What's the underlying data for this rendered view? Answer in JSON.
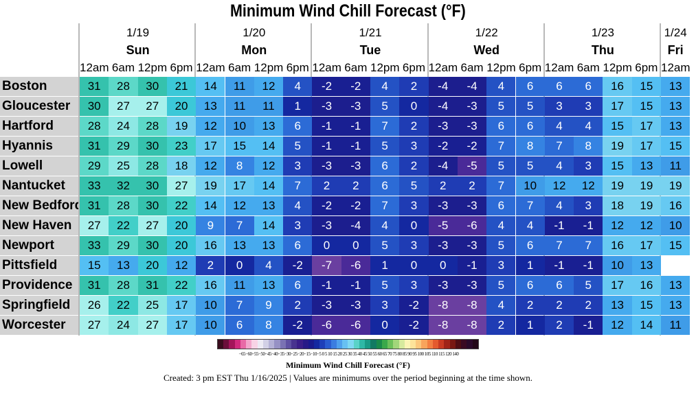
{
  "title": "Minimum Wind Chill Forecast (°F)",
  "chart_data": {
    "type": "heatmap",
    "days": [
      {
        "date": "1/19",
        "dow": "Sun",
        "hours": [
          "12am",
          "6am",
          "12pm",
          "6pm"
        ]
      },
      {
        "date": "1/20",
        "dow": "Mon",
        "hours": [
          "12am",
          "6am",
          "12pm",
          "6pm"
        ]
      },
      {
        "date": "1/21",
        "dow": "Tue",
        "hours": [
          "12am",
          "6am",
          "12pm",
          "6pm"
        ]
      },
      {
        "date": "1/22",
        "dow": "Wed",
        "hours": [
          "12am",
          "6am",
          "12pm",
          "6pm"
        ]
      },
      {
        "date": "1/23",
        "dow": "Thu",
        "hours": [
          "12am",
          "6am",
          "12pm",
          "6pm"
        ]
      },
      {
        "date": "1/24",
        "dow": "Fri",
        "hours": [
          "12am"
        ]
      }
    ],
    "rows": [
      {
        "city": "Boston",
        "values": [
          31,
          28,
          30,
          21,
          14,
          11,
          12,
          4,
          -2,
          -2,
          4,
          2,
          -4,
          -4,
          4,
          6,
          6,
          6,
          16,
          15,
          13
        ]
      },
      {
        "city": "Gloucester",
        "values": [
          30,
          27,
          27,
          20,
          13,
          11,
          11,
          1,
          -3,
          -3,
          5,
          0,
          -4,
          -3,
          5,
          5,
          3,
          3,
          17,
          15,
          13
        ]
      },
      {
        "city": "Hartford",
        "values": [
          28,
          24,
          28,
          19,
          12,
          10,
          13,
          6,
          -1,
          -1,
          7,
          2,
          -3,
          -3,
          6,
          6,
          4,
          4,
          15,
          17,
          13
        ]
      },
      {
        "city": "Hyannis",
        "values": [
          31,
          29,
          30,
          23,
          17,
          15,
          14,
          5,
          -1,
          -1,
          5,
          3,
          -2,
          -2,
          7,
          8,
          7,
          8,
          19,
          17,
          15
        ]
      },
      {
        "city": "Lowell",
        "values": [
          29,
          25,
          28,
          18,
          12,
          8,
          12,
          3,
          -3,
          -3,
          6,
          2,
          -4,
          -5,
          5,
          5,
          4,
          3,
          15,
          13,
          11
        ]
      },
      {
        "city": "Nantucket",
        "values": [
          33,
          32,
          30,
          27,
          19,
          17,
          14,
          7,
          2,
          2,
          6,
          5,
          2,
          2,
          7,
          10,
          12,
          12,
          19,
          19,
          19
        ]
      },
      {
        "city": "New Bedford",
        "values": [
          31,
          28,
          30,
          22,
          14,
          12,
          13,
          4,
          -2,
          -2,
          7,
          3,
          -3,
          -3,
          6,
          7,
          4,
          3,
          18,
          19,
          16
        ]
      },
      {
        "city": "New Haven",
        "values": [
          27,
          22,
          27,
          20,
          9,
          7,
          14,
          3,
          -3,
          -4,
          4,
          0,
          -5,
          -6,
          4,
          4,
          -1,
          -1,
          12,
          12,
          10
        ]
      },
      {
        "city": "Newport",
        "values": [
          33,
          29,
          30,
          20,
          16,
          13,
          13,
          6,
          0,
          0,
          5,
          3,
          -3,
          -3,
          5,
          6,
          7,
          7,
          16,
          17,
          15
        ]
      },
      {
        "city": "Pittsfield",
        "values": [
          15,
          13,
          20,
          12,
          2,
          0,
          4,
          -2,
          -7,
          -6,
          1,
          0,
          0,
          -1,
          3,
          1,
          -1,
          -1,
          10,
          13,
          null
        ]
      },
      {
        "city": "Providence",
        "values": [
          31,
          28,
          31,
          22,
          16,
          11,
          13,
          6,
          -1,
          -1,
          5,
          3,
          -3,
          -3,
          5,
          6,
          6,
          5,
          17,
          16,
          13
        ]
      },
      {
        "city": "Springfield",
        "values": [
          26,
          22,
          25,
          17,
          10,
          7,
          9,
          2,
          -3,
          -3,
          3,
          -2,
          -8,
          -8,
          4,
          2,
          2,
          2,
          13,
          15,
          13
        ]
      },
      {
        "city": "Worcester",
        "values": [
          27,
          24,
          27,
          17,
          10,
          6,
          8,
          -2,
          -6,
          -6,
          0,
          -2,
          -8,
          -8,
          2,
          1,
          2,
          -1,
          12,
          14,
          11
        ]
      }
    ],
    "legend": {
      "label": "Minimum Wind Chill Forecast (°F)",
      "ticks": "−65−60−55−50−45−40−35−30−25−20−15−10−5 0 5 10 15 20 25 30 35 40 45 50 55 60 65 70 75 80 85 90 95 100 105 110 115 120 140",
      "colors": [
        "#3a0d1e",
        "#6b0f3a",
        "#a3155a",
        "#d12a7e",
        "#e86aa6",
        "#f2a7cc",
        "#f8d3e6",
        "#eceaf4",
        "#d2d0e6",
        "#b4b1d6",
        "#9691c4",
        "#7a72b3",
        "#5f51a2",
        "#48338f",
        "#3a1f88",
        "#271a87",
        "#1a1a8c",
        "#1428a0",
        "#1e3fb8",
        "#2a5ccf",
        "#3b7de0",
        "#4fa0ec",
        "#67c0f2",
        "#7fd8f2",
        "#5ad2c8",
        "#2fb8a6",
        "#1a9a85",
        "#127a62",
        "#1a8a4a",
        "#3aa84a",
        "#6cc05a",
        "#a2d67a",
        "#d6ea9e",
        "#fbf4b5",
        "#fde39a",
        "#fbc77c",
        "#f8a45c",
        "#f27f42",
        "#e45a2e",
        "#c83a22",
        "#a02418",
        "#781812",
        "#4e0e14",
        "#3a0a22",
        "#2a0a2a",
        "#220818"
      ]
    }
  },
  "footer": "Created: 3 pm EST Thu 1/16/2025  |  Values are minimums over the period beginning at the time shown."
}
